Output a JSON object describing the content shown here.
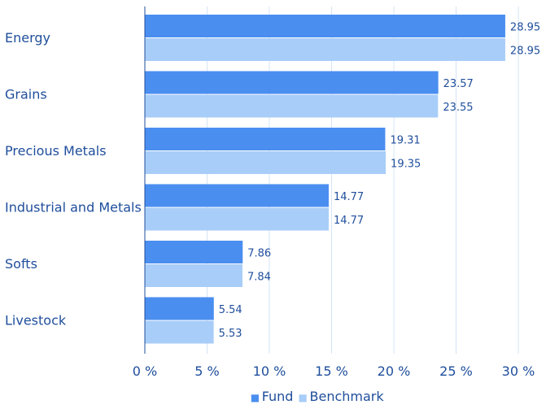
{
  "chart_data": {
    "type": "bar",
    "orientation": "horizontal",
    "categories": [
      "Energy",
      "Grains",
      "Precious Metals",
      "Industrial and Metals",
      "Softs",
      "Livestock"
    ],
    "series": [
      {
        "name": "Fund",
        "values": [
          28.95,
          23.57,
          19.31,
          14.77,
          7.86,
          5.54
        ],
        "color": "#4a8ef0"
      },
      {
        "name": "Benchmark",
        "values": [
          28.95,
          23.55,
          19.35,
          14.77,
          7.84,
          5.53
        ],
        "color": "#a8cdf8"
      }
    ],
    "value_labels": [
      [
        "28.95",
        "23.57",
        "19.31",
        "14.77",
        "7.86",
        "5.54"
      ],
      [
        "28.95",
        "23.55",
        "19.35",
        "14.77",
        "7.84",
        "5.53"
      ]
    ],
    "xlim": [
      0,
      30
    ],
    "x_ticks": [
      0,
      5,
      10,
      15,
      20,
      25,
      30
    ],
    "x_tick_labels": [
      "0 %",
      "5 %",
      "10 %",
      "15 %",
      "20 %",
      "25 %",
      "30 %"
    ],
    "grid": true,
    "legend_position": "bottom",
    "legend_marker": "■",
    "title": "",
    "xlabel": "",
    "ylabel": ""
  }
}
